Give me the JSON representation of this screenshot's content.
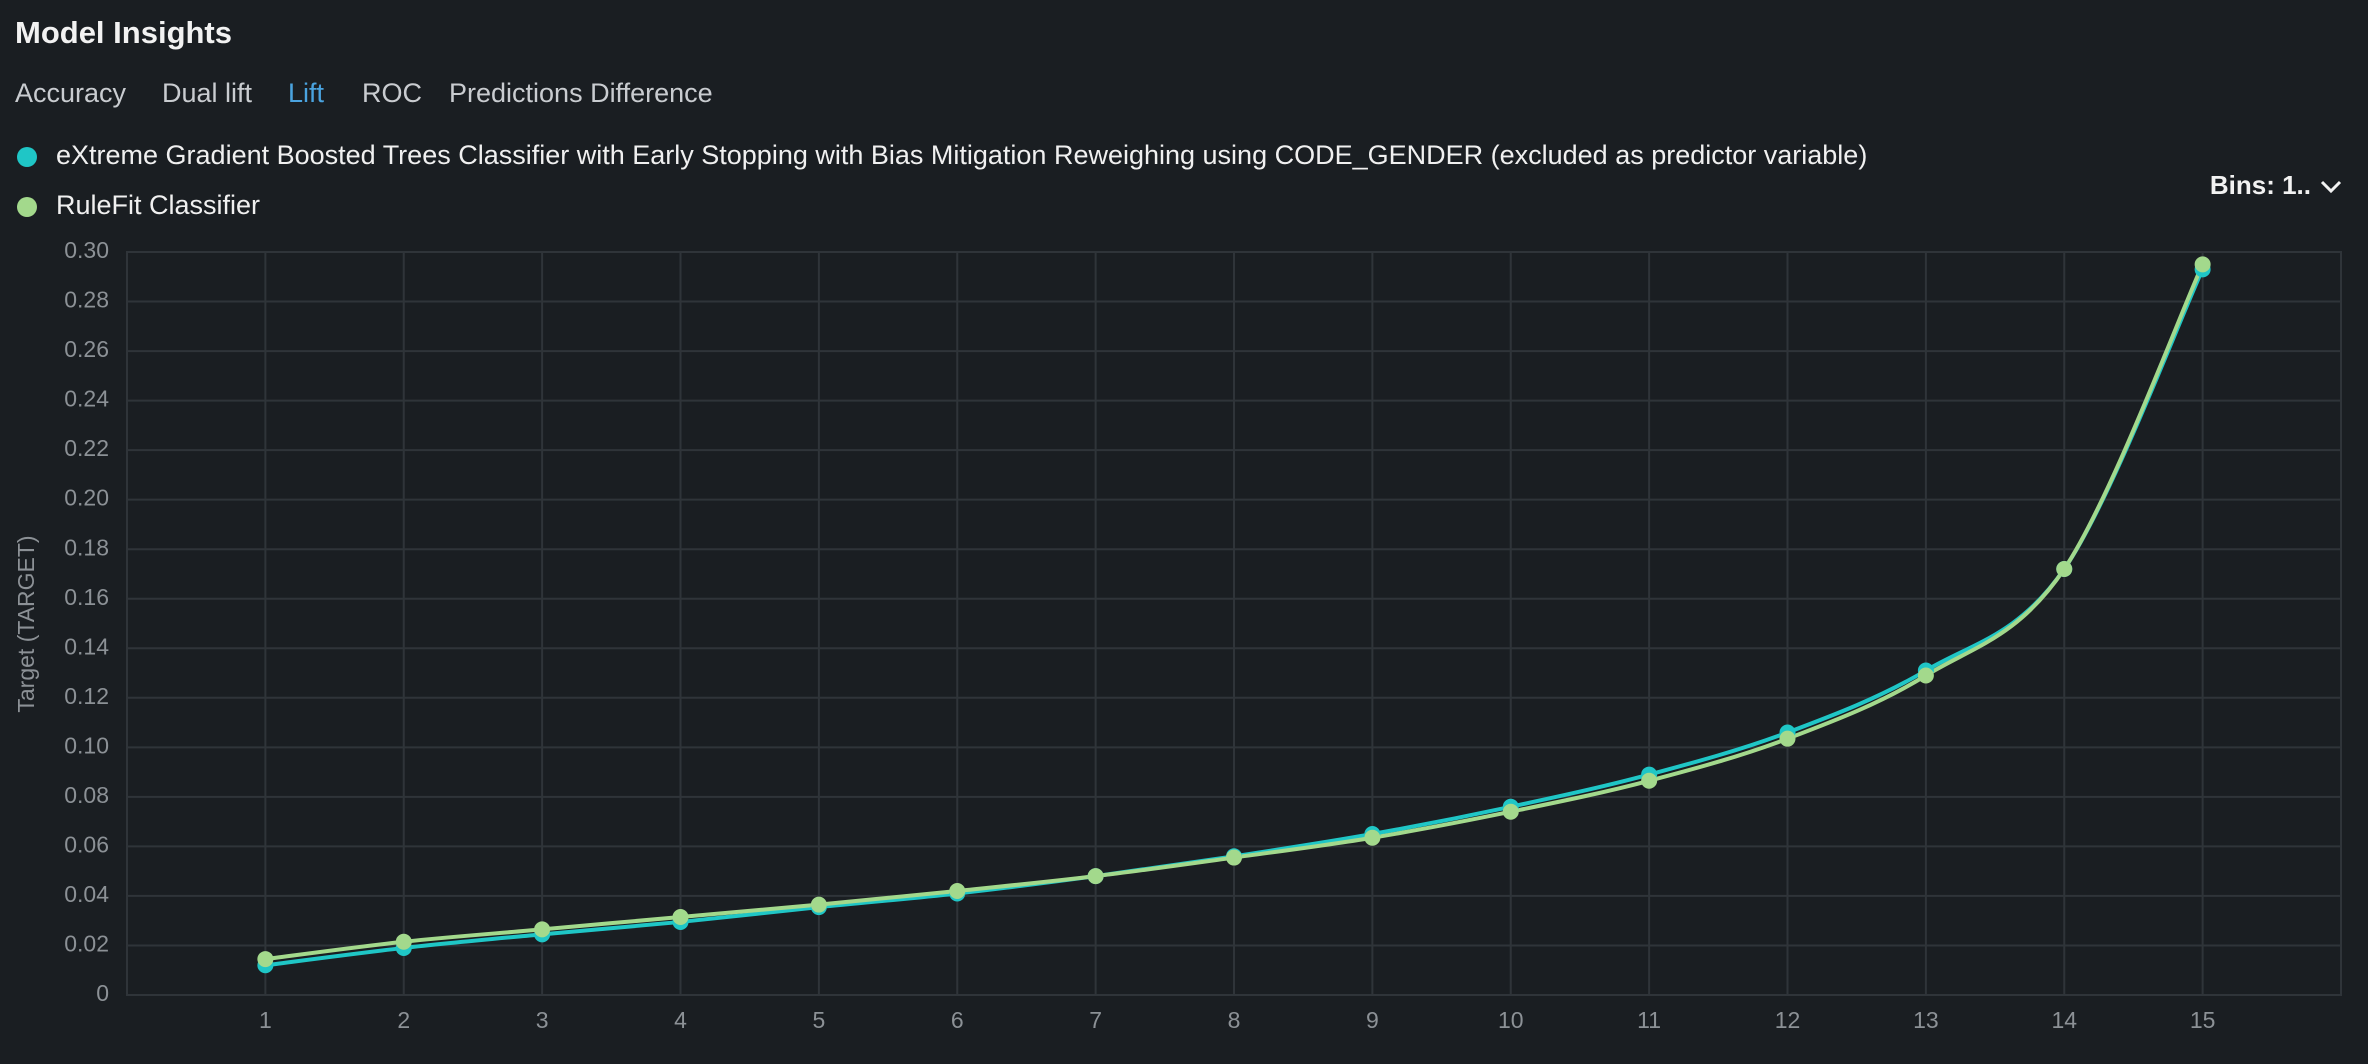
{
  "header": {
    "title": "Model Insights",
    "tabs": [
      "Accuracy",
      "Dual lift",
      "Lift",
      "ROC",
      "Predictions Difference"
    ],
    "bins": "Bins: 1.."
  },
  "chart_data": {
    "type": "line",
    "y_label": "Target (TARGET)",
    "categories": [
      "1",
      "2",
      "3",
      "4",
      "5",
      "6",
      "7",
      "8",
      "9",
      "10",
      "11",
      "12",
      "13",
      "14",
      "15"
    ],
    "series": [
      {
        "name": "eXtreme Gradient Boosted Trees Classifier with Early Stopping with Bias Mitigation Reweighing using CODE_GENDER (excluded as predictor variable)",
        "color": "#1fc6c6",
        "values": [
          0.012,
          0.019,
          0.0245,
          0.0295,
          0.0355,
          0.041,
          0.048,
          0.056,
          0.065,
          0.076,
          0.089,
          0.106,
          0.131,
          0.172,
          0.293
        ]
      },
      {
        "name": "RuleFit Classifier",
        "color": "#a3d98c",
        "values": [
          0.0145,
          0.0215,
          0.0265,
          0.0315,
          0.0365,
          0.042,
          0.048,
          0.0555,
          0.0635,
          0.074,
          0.0865,
          0.1035,
          0.129,
          0.172,
          0.295
        ]
      }
    ],
    "ylim": [
      0,
      0.3
    ],
    "yticks": [
      0,
      0.02,
      0.04,
      0.06,
      0.08,
      {
        "value": 0.1,
        "label": "0.10"
      },
      0.12,
      0.14,
      0.16,
      0.18,
      {
        "value": 0.2,
        "label": "0.20"
      },
      0.22,
      0.24,
      0.26,
      0.28,
      {
        "value": 0.3,
        "label": "0.30"
      }
    ],
    "grid": true
  }
}
